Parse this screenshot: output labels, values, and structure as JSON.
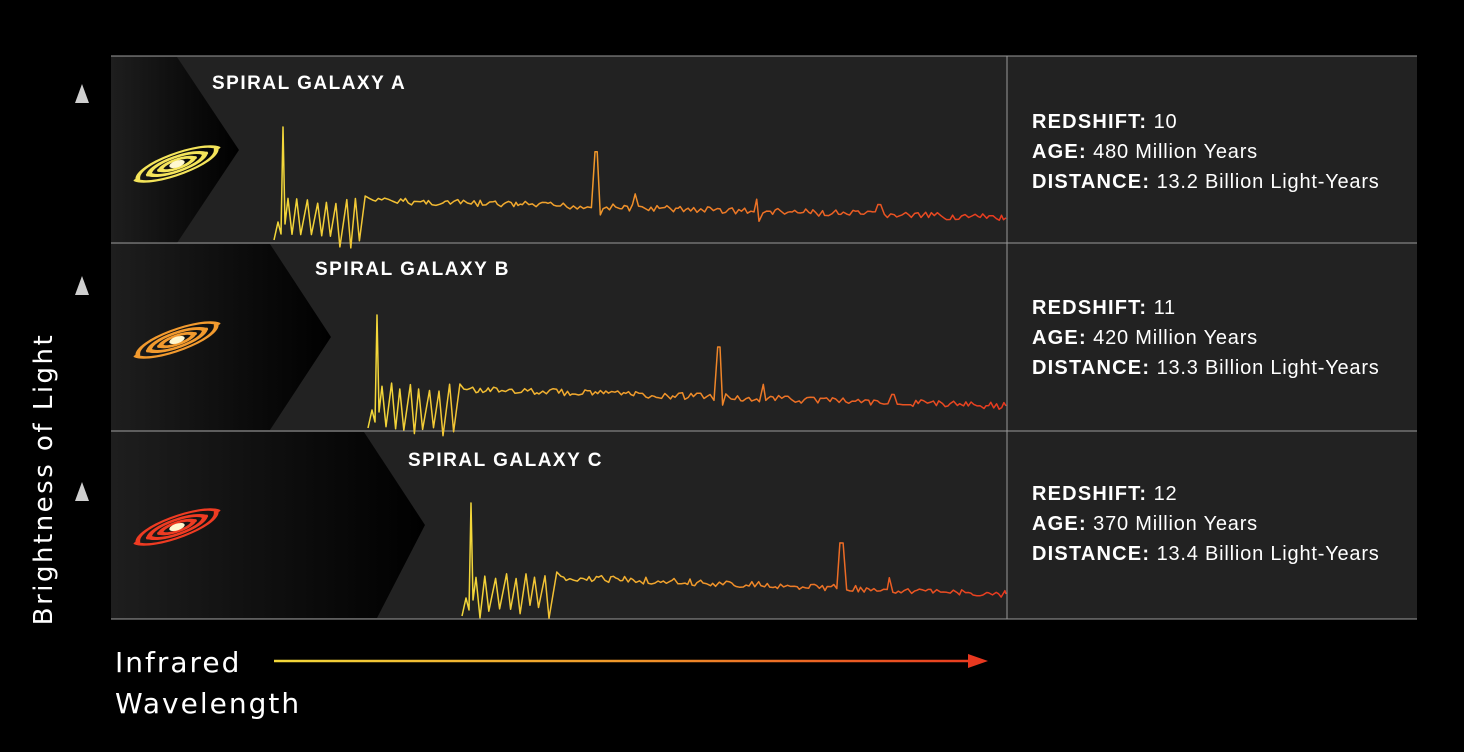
{
  "y_axis_label": "Brightness of Light",
  "x_axis_label_line1": "Infrared",
  "x_axis_label_line2": "Wavelength",
  "gradient_colors": {
    "start": "#f3d93a",
    "mid": "#f0962a",
    "end": "#e8381f"
  },
  "galaxies": [
    {
      "title": "SPIRAL GALAXY A",
      "icon": "spiral-galaxy-icon",
      "icon_color": "#f4e45a",
      "redshift_label": "REDSHIFT:",
      "redshift_value": "10",
      "age_label": "AGE:",
      "age_value": "480 Million Years",
      "distance_label": "DISTANCE:",
      "distance_value": "13.2 Billion Light-Years"
    },
    {
      "title": "SPIRAL GALAXY B",
      "icon": "spiral-galaxy-icon",
      "icon_color": "#f29a2e",
      "redshift_label": "REDSHIFT:",
      "redshift_value": "11",
      "age_label": "AGE:",
      "age_value": "420 Million Years",
      "distance_label": "DISTANCE:",
      "distance_value": "13.3 Billion Light-Years"
    },
    {
      "title": "SPIRAL GALAXY C",
      "icon": "spiral-galaxy-icon",
      "icon_color": "#ef3b22",
      "redshift_label": "REDSHIFT:",
      "redshift_value": "12",
      "age_label": "AGE:",
      "age_value": "370 Million Years",
      "distance_label": "DISTANCE:",
      "distance_value": "13.4 Billion Light-Years"
    }
  ]
}
